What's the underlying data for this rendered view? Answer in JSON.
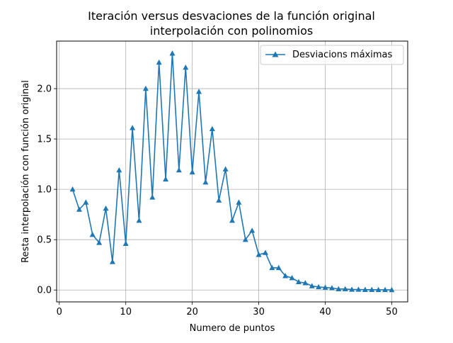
{
  "colors": {
    "series": "#1f77b4",
    "grid": "#b0b0b0",
    "axis": "#000000",
    "background": "#ffffff"
  },
  "chart_data": {
    "type": "line",
    "title_line1": "Iteración versus desvaciones de la función original",
    "title_line2": "interpolación con polinomios",
    "xlabel": "Numero de puntos",
    "ylabel": "Resta interpolación con función original",
    "xlim": [
      -0.4,
      52.4
    ],
    "ylim": [
      -0.118,
      2.472
    ],
    "xticks": [
      0,
      10,
      20,
      30,
      40,
      50
    ],
    "xtick_labels": [
      "0",
      "10",
      "20",
      "30",
      "40",
      "50"
    ],
    "yticks": [
      0.0,
      0.5,
      1.0,
      1.5,
      2.0
    ],
    "ytick_labels": [
      "0.0",
      "0.5",
      "1.0",
      "1.5",
      "2.0"
    ],
    "grid": true,
    "legend_position": "top-right",
    "series": [
      {
        "name": "Desviacions máximas",
        "marker": "triangle-up",
        "x": [
          2,
          3,
          4,
          5,
          6,
          7,
          8,
          9,
          10,
          11,
          12,
          13,
          14,
          15,
          16,
          17,
          18,
          19,
          20,
          21,
          22,
          23,
          24,
          25,
          26,
          27,
          28,
          29,
          30,
          31,
          32,
          33,
          34,
          35,
          36,
          37,
          38,
          39,
          40,
          41,
          42,
          43,
          44,
          45,
          46,
          47,
          48,
          49,
          50
        ],
        "values": [
          1.0,
          0.8,
          0.87,
          0.55,
          0.47,
          0.81,
          0.28,
          1.19,
          0.46,
          1.61,
          0.69,
          2.0,
          0.92,
          2.26,
          1.1,
          2.35,
          1.19,
          2.21,
          1.17,
          1.97,
          1.07,
          1.6,
          0.89,
          1.2,
          0.69,
          0.87,
          0.5,
          0.59,
          0.35,
          0.37,
          0.22,
          0.22,
          0.14,
          0.12,
          0.08,
          0.07,
          0.04,
          0.03,
          0.025,
          0.02,
          0.01,
          0.01,
          0.005,
          0.005,
          0.003,
          0.003,
          0.002,
          0.002,
          0.001
        ]
      }
    ]
  }
}
